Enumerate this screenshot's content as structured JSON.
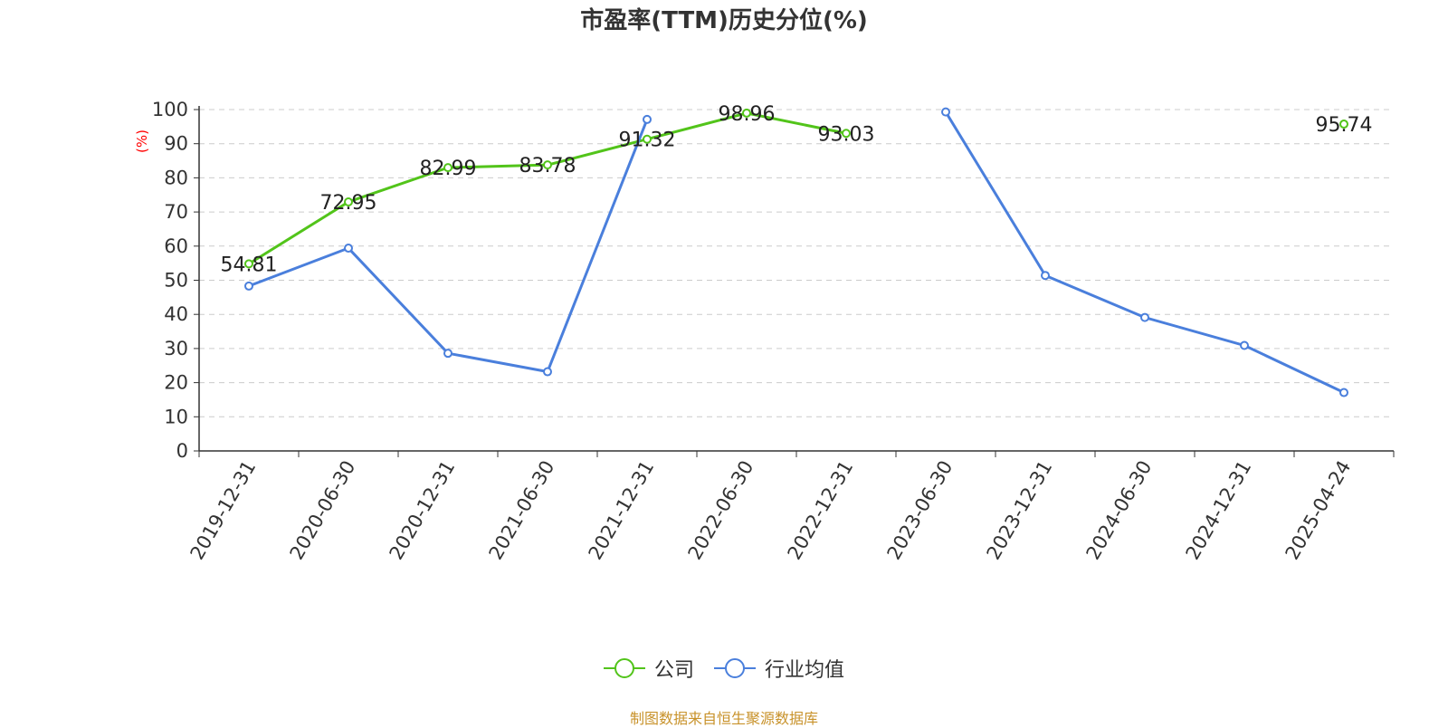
{
  "title": "市盈率(TTM)历史分位(%)",
  "source": "制图数据来自恒生聚源数据库",
  "colors": {
    "company": "#52c41a",
    "industry": "#4a7fdc",
    "ylabel": "#ff0000",
    "source": "#c8922a"
  },
  "chart_data": {
    "type": "line",
    "title": "市盈率(TTM)历史分位(%)",
    "ylabel": "(%)",
    "xlabel": "",
    "ylim": [
      0,
      100
    ],
    "yticks": [
      0,
      10,
      20,
      30,
      40,
      50,
      60,
      70,
      80,
      90,
      100
    ],
    "grid": true,
    "legend_position": "bottom",
    "x": [
      "2019-12-31",
      "2020-06-30",
      "2020-12-31",
      "2021-06-30",
      "2021-12-31",
      "2022-06-30",
      "2022-12-31",
      "2023-06-30",
      "2023-12-31",
      "2024-06-30",
      "2024-12-31",
      "2025-04-24"
    ],
    "series": [
      {
        "name": "公司",
        "color": "#52c41a",
        "show_labels": true,
        "values": [
          54.81,
          72.95,
          82.99,
          83.78,
          91.32,
          98.96,
          93.03,
          null,
          null,
          null,
          null,
          95.74
        ]
      },
      {
        "name": "行业均值",
        "color": "#4a7fdc",
        "show_labels": false,
        "values": [
          48.3,
          59.4,
          28.6,
          23.2,
          97.1,
          null,
          null,
          99.3,
          51.4,
          39.1,
          30.9,
          17.1
        ]
      }
    ]
  }
}
